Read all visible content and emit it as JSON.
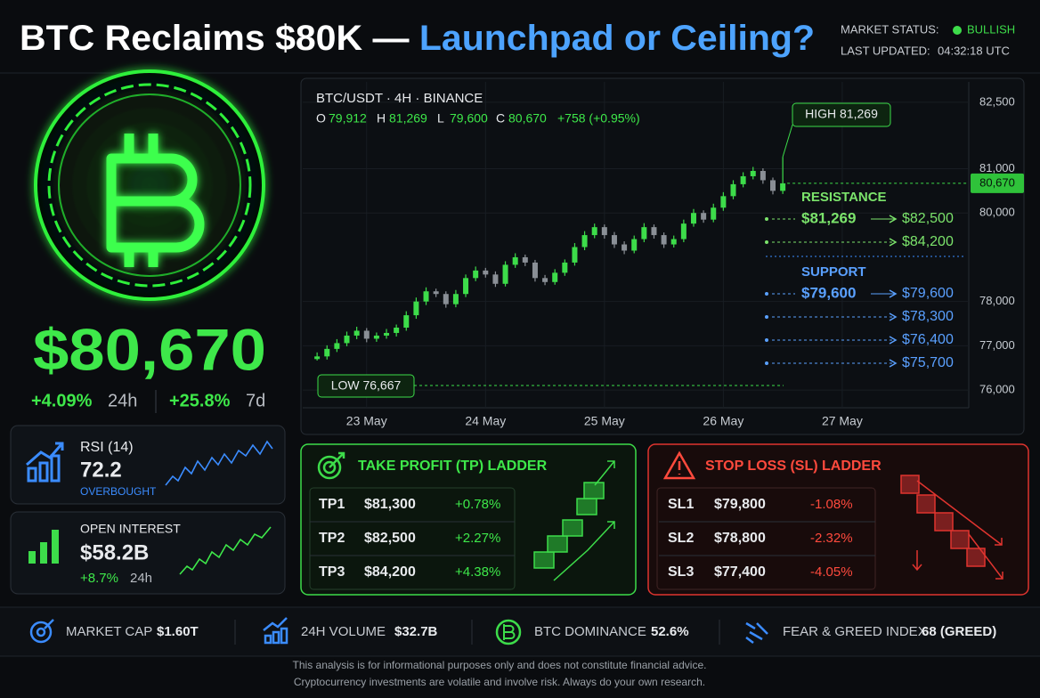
{
  "header": {
    "title": [
      "BTC Reclaims $80K — ",
      "Launchpad or Ceiling?"
    ],
    "status_label": "MARKET STATUS:",
    "status": "BULLISH",
    "updated_label": "LAST UPDATED:",
    "updated": "04:32:18 UTC"
  },
  "price": {
    "value": "$80,670",
    "change_24h": "+4.09%",
    "period_24h": "24h",
    "change_7d": "+25.8%",
    "period_7d": "7d"
  },
  "rsi": {
    "label": "RSI (14)",
    "value": "72.2",
    "state": "OVERBOUGHT"
  },
  "open_interest": {
    "label": "OPEN INTEREST",
    "value": "$58.2B",
    "change": "+8.7%",
    "period": "24h"
  },
  "chart_data": {
    "type": "candlestick",
    "title": "BTC/USDT · 4H · BINANCE",
    "ohlc": [
      {
        "key": "O",
        "value": "79,912"
      },
      {
        "key": "H",
        "value": "81,269"
      },
      {
        "key": "L",
        "value": "79,600"
      },
      {
        "key": "C",
        "value": "80,670"
      }
    ],
    "change": "+758 (+0.95%)",
    "open": [
      76700,
      76760,
      76930,
      77060,
      77230,
      77340,
      77160,
      77230,
      77290,
      77410,
      77690,
      78000,
      78230,
      78170,
      77940,
      78170,
      78530,
      78700,
      78610,
      78400,
      78830,
      79000,
      78880,
      78530,
      78440,
      78650,
      78880,
      79230,
      79500,
      79680,
      79500,
      79290,
      79150,
      79410,
      79680,
      79500,
      79290,
      79410,
      79760,
      80000,
      79850,
      80120,
      80380,
      80650,
      80830,
      80950,
      80740,
      80500
    ],
    "high": [
      76850,
      77010,
      77150,
      77320,
      77430,
      77400,
      77300,
      77380,
      77480,
      77780,
      78090,
      78320,
      78290,
      78230,
      78260,
      78610,
      78790,
      78760,
      78680,
      78910,
      79090,
      79060,
      78940,
      78600,
      78730,
      78950,
      79320,
      79590,
      79760,
      79740,
      79570,
      79360,
      79490,
      79770,
      79740,
      79560,
      79490,
      79850,
      80090,
      80060,
      80210,
      80470,
      80740,
      80920,
      81040,
      81010,
      80800,
      81269
    ],
    "low": [
      76667,
      76690,
      76860,
      76990,
      77150,
      77080,
      77090,
      77160,
      77210,
      77340,
      77610,
      77920,
      78100,
      77860,
      77870,
      78100,
      78460,
      78540,
      78330,
      78340,
      78760,
      78800,
      78450,
      78370,
      78380,
      78580,
      78810,
      79160,
      79430,
      79420,
      79210,
      79070,
      79090,
      79340,
      79420,
      79210,
      79220,
      79340,
      79690,
      79780,
      79790,
      80050,
      80310,
      80580,
      80760,
      80660,
      80420,
      80430
    ],
    "close": [
      76760,
      76930,
      77060,
      77230,
      77340,
      77160,
      77230,
      77290,
      77410,
      77690,
      78000,
      78230,
      78170,
      77940,
      78170,
      78530,
      78700,
      78610,
      78400,
      78830,
      79000,
      78880,
      78530,
      78440,
      78650,
      78880,
      79230,
      79500,
      79680,
      79500,
      79290,
      79150,
      79410,
      79680,
      79500,
      79290,
      79410,
      79760,
      80000,
      79850,
      80120,
      80380,
      80650,
      80830,
      80950,
      80740,
      80500,
      80670
    ],
    "up_color": "#3ddc4a",
    "down_color": "#8a8f96",
    "xlim": [
      -1,
      65.5
    ],
    "xticks": [
      {
        "value": 5,
        "label": "23 May"
      },
      {
        "value": 17,
        "label": "24 May"
      },
      {
        "value": 29,
        "label": "25 May"
      },
      {
        "value": 41,
        "label": "26 May"
      },
      {
        "value": 53,
        "label": "27 May"
      }
    ],
    "ylim": [
      75600,
      82800
    ],
    "yticks": [
      {
        "value": 76000,
        "label": "76,000"
      },
      {
        "value": 77000,
        "label": "77,000"
      },
      {
        "value": 78000,
        "label": "78,000"
      },
      {
        "value": 80000,
        "label": "80,000"
      },
      {
        "value": 81000,
        "label": "81,000"
      },
      {
        "value": 82500,
        "label": "82,500"
      }
    ],
    "grid": true,
    "current_price": {
      "value": 80670,
      "label": "80,670"
    },
    "annotations": {
      "high": "HIGH 81,269",
      "low": "LOW 76,667"
    },
    "resistance": {
      "title": "RESISTANCE",
      "levels": [
        {
          "from": "$81,269",
          "to": "$82,500"
        },
        {
          "to": "$84,200"
        }
      ]
    },
    "support": {
      "title": "SUPPORT",
      "levels": [
        {
          "from": "$79,600",
          "to": "$79,600"
        },
        {
          "to": "$78,300"
        },
        {
          "to": "$76,400"
        },
        {
          "to": "$75,700"
        }
      ]
    }
  },
  "take_profit": {
    "title": "TAKE PROFIT (TP) LADDER",
    "rows": [
      [
        "TP1",
        "$81,300",
        "+0.78%"
      ],
      [
        "TP2",
        "$82,500",
        "+2.27%"
      ],
      [
        "TP3",
        "$84,200",
        "+4.38%"
      ]
    ]
  },
  "stop_loss": {
    "title": "STOP LOSS (SL) LADDER",
    "rows": [
      [
        "SL1",
        "$79,800",
        "-1.08%"
      ],
      [
        "SL2",
        "$78,800",
        "-2.32%"
      ],
      [
        "SL3",
        "$77,400",
        "-4.05%"
      ]
    ]
  },
  "stats": [
    {
      "label": "MARKET CAP",
      "value": "$1.60T"
    },
    {
      "label": "24H VOLUME",
      "value": "$32.7B"
    },
    {
      "label": "BTC DOMINANCE",
      "value": "52.6%"
    },
    {
      "label": "FEAR & GREED INDEX",
      "value": "68 (GREED)"
    }
  ],
  "disclaimer": [
    "This analysis is for informational purposes only and does not constitute financial advice.",
    "Cryptocurrency investments are volatile and involve risk. Always do your own research."
  ]
}
